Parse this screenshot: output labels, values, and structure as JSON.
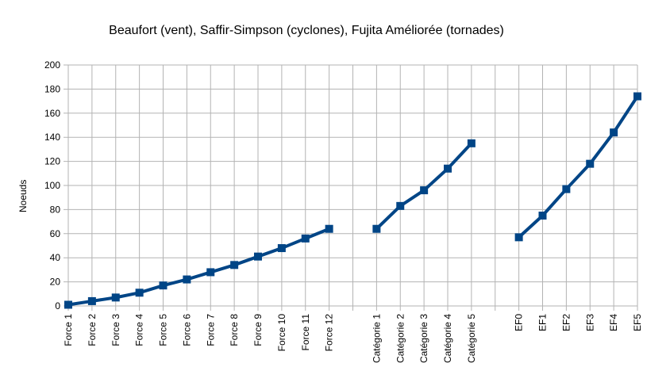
{
  "chart_data": {
    "type": "line",
    "title": "Beaufort (vent), Saffir-Simpson (cyclones), Fujita Améliorée (tornades)",
    "xlabel": "",
    "ylabel": "Noeuds",
    "ylim": [
      0,
      200
    ],
    "yticks": [
      0,
      20,
      40,
      60,
      80,
      100,
      120,
      140,
      160,
      180,
      200
    ],
    "grid": true,
    "legend": "none",
    "categories": [
      "Force 1",
      "Force 2",
      "Force 3",
      "Force 4",
      "Force 5",
      "Force 6",
      "Force 7",
      "Force 8",
      "Force 9",
      "Force 10",
      "Force 11",
      "Force 12",
      "",
      "Catégorie 1",
      "Catégorie 2",
      "Catégorie 3",
      "Catégorie 4",
      "Catégorie 5",
      "",
      "EF0",
      "EF1",
      "EF2",
      "EF3",
      "EF4",
      "EF5"
    ],
    "series": [
      {
        "name": "Beaufort",
        "values": [
          1,
          4,
          7,
          11,
          17,
          22,
          28,
          34,
          41,
          48,
          56,
          64,
          null,
          null,
          null,
          null,
          null,
          null,
          null,
          null,
          null,
          null,
          null,
          null,
          null
        ]
      },
      {
        "name": "Saffir-Simpson",
        "values": [
          null,
          null,
          null,
          null,
          null,
          null,
          null,
          null,
          null,
          null,
          null,
          null,
          null,
          64,
          83,
          96,
          114,
          135,
          null,
          null,
          null,
          null,
          null,
          null,
          null
        ]
      },
      {
        "name": "Fujita Améliorée",
        "values": [
          null,
          null,
          null,
          null,
          null,
          null,
          null,
          null,
          null,
          null,
          null,
          null,
          null,
          null,
          null,
          null,
          null,
          null,
          null,
          57,
          75,
          97,
          118,
          144,
          174
        ]
      }
    ],
    "colors": {
      "line": "#004586",
      "grid": "#b3b3b3",
      "axis": "#b3b3b3"
    }
  }
}
